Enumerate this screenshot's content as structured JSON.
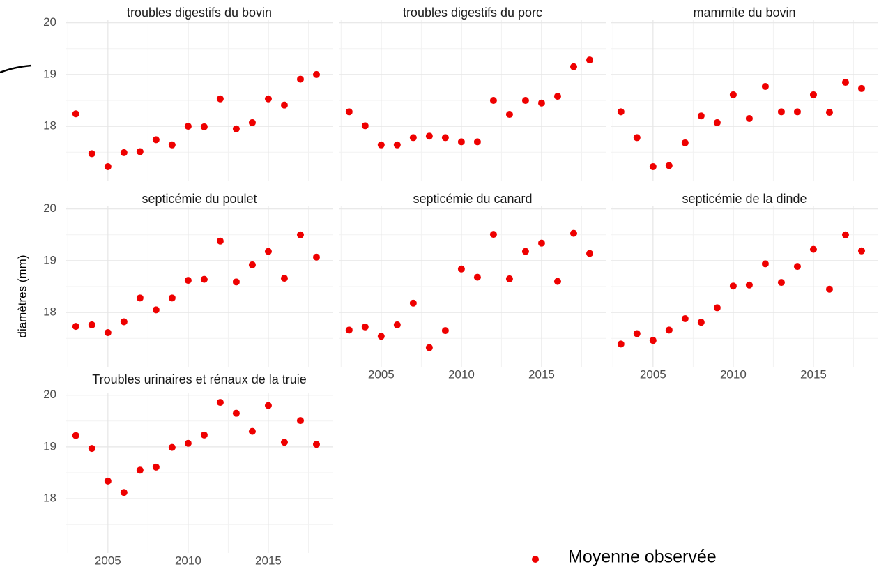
{
  "y_label": "diamètres (mm)",
  "legend_label": "Moyenne observée",
  "chart_data": [
    {
      "type": "scatter",
      "title": "troubles digestifs du bovin",
      "color": "#ee0000",
      "x": [
        2003,
        2004,
        2005,
        2006,
        2007,
        2008,
        2009,
        2010,
        2011,
        2012,
        2013,
        2014,
        2015,
        2016,
        2017,
        2018
      ],
      "values": [
        18.24,
        17.47,
        17.22,
        17.49,
        17.51,
        17.74,
        17.64,
        18.0,
        17.99,
        18.53,
        17.95,
        18.07,
        18.53,
        18.41,
        18.91,
        19.0
      ],
      "xlim": [
        2002.4,
        2019
      ],
      "ylim": [
        16.95,
        20.05
      ],
      "xticks": [
        2005,
        2010,
        2015
      ],
      "yticks": [
        18,
        19,
        20
      ],
      "grid": true
    },
    {
      "type": "scatter",
      "title": "troubles digestifs du porc",
      "color": "#ee0000",
      "x": [
        2003,
        2004,
        2005,
        2006,
        2007,
        2008,
        2009,
        2010,
        2011,
        2012,
        2013,
        2014,
        2015,
        2016,
        2017,
        2018
      ],
      "values": [
        18.28,
        18.01,
        17.64,
        17.64,
        17.78,
        17.81,
        17.78,
        17.7,
        17.7,
        18.5,
        18.23,
        18.5,
        18.45,
        18.58,
        19.15,
        19.28
      ],
      "xlim": [
        2002.4,
        2019
      ],
      "ylim": [
        16.95,
        20.05
      ],
      "xticks": [
        2005,
        2010,
        2015
      ],
      "yticks": [
        18,
        19,
        20
      ],
      "grid": true
    },
    {
      "type": "scatter",
      "title": "mammite du bovin",
      "color": "#ee0000",
      "x": [
        2003,
        2004,
        2005,
        2006,
        2007,
        2008,
        2009,
        2010,
        2011,
        2012,
        2013,
        2014,
        2015,
        2016,
        2017,
        2018
      ],
      "values": [
        18.28,
        17.78,
        17.22,
        17.24,
        17.68,
        18.2,
        18.07,
        18.61,
        18.15,
        18.77,
        18.28,
        18.28,
        18.61,
        18.27,
        18.85,
        18.73
      ],
      "xlim": [
        2002.4,
        2019
      ],
      "ylim": [
        16.95,
        20.05
      ],
      "xticks": [
        2005,
        2010,
        2015
      ],
      "yticks": [
        18,
        19,
        20
      ],
      "grid": true
    },
    {
      "type": "scatter",
      "title": "septicémie du poulet",
      "color": "#ee0000",
      "x": [
        2003,
        2004,
        2005,
        2006,
        2007,
        2008,
        2009,
        2010,
        2011,
        2012,
        2013,
        2014,
        2015,
        2016,
        2017,
        2018
      ],
      "values": [
        17.73,
        17.76,
        17.61,
        17.82,
        18.28,
        18.05,
        18.28,
        18.62,
        18.64,
        19.38,
        18.59,
        18.92,
        19.18,
        18.66,
        19.5,
        19.07
      ],
      "xlim": [
        2002.4,
        2019
      ],
      "ylim": [
        16.95,
        20.05
      ],
      "xticks": [
        2005,
        2010,
        2015
      ],
      "yticks": [
        18,
        19,
        20
      ],
      "grid": true
    },
    {
      "type": "scatter",
      "title": "septicémie du canard",
      "color": "#ee0000",
      "x": [
        2003,
        2004,
        2005,
        2006,
        2007,
        2008,
        2009,
        2010,
        2011,
        2012,
        2013,
        2014,
        2015,
        2016,
        2017,
        2018
      ],
      "values": [
        17.66,
        17.72,
        17.54,
        17.76,
        18.18,
        17.32,
        17.65,
        18.84,
        18.68,
        19.51,
        18.65,
        19.18,
        19.34,
        18.6,
        19.53,
        19.14
      ],
      "xlim": [
        2002.4,
        2019
      ],
      "ylim": [
        16.95,
        20.05
      ],
      "xticks": [
        2005,
        2010,
        2015
      ],
      "yticks": [
        18,
        19,
        20
      ],
      "grid": true
    },
    {
      "type": "scatter",
      "title": "septicémie de la dinde",
      "color": "#ee0000",
      "x": [
        2003,
        2004,
        2005,
        2006,
        2007,
        2008,
        2009,
        2010,
        2011,
        2012,
        2013,
        2014,
        2015,
        2016,
        2017,
        2018
      ],
      "values": [
        17.39,
        17.59,
        17.46,
        17.66,
        17.88,
        17.81,
        18.09,
        18.51,
        18.53,
        18.94,
        18.58,
        18.89,
        19.22,
        18.45,
        19.5,
        19.19
      ],
      "xlim": [
        2002.4,
        2019
      ],
      "ylim": [
        16.95,
        20.05
      ],
      "xticks": [
        2005,
        2010,
        2015
      ],
      "yticks": [
        18,
        19,
        20
      ],
      "grid": true
    },
    {
      "type": "scatter",
      "title": "Troubles urinaires et rénaux de la truie",
      "color": "#ee0000",
      "x": [
        2003,
        2004,
        2005,
        2006,
        2007,
        2008,
        2009,
        2010,
        2011,
        2012,
        2013,
        2014,
        2015,
        2016,
        2017,
        2018
      ],
      "values": [
        19.22,
        18.97,
        18.34,
        18.12,
        18.55,
        18.61,
        18.99,
        19.07,
        19.23,
        19.86,
        19.65,
        19.3,
        19.8,
        19.09,
        19.51,
        19.05
      ],
      "xlim": [
        2002.4,
        2019
      ],
      "ylim": [
        16.95,
        20.05
      ],
      "xticks": [
        2005,
        2010,
        2015
      ],
      "yticks": [
        18,
        19,
        20
      ],
      "grid": true
    }
  ]
}
